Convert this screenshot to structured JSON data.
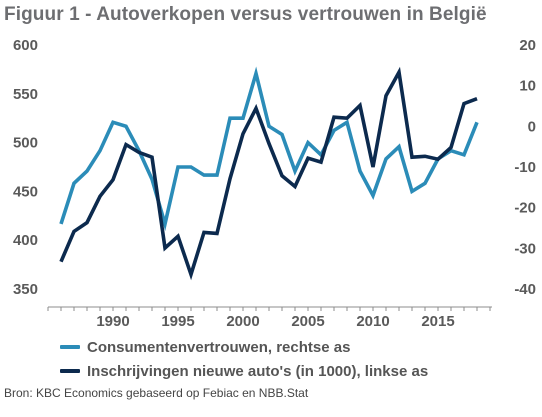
{
  "title": "Figuur 1 - Autoverkopen versus vertrouwen in België",
  "source": "Bron: KBC Economics gebaseerd op Febiac en NBB.Stat",
  "chart_data": {
    "type": "line",
    "x_ticks": [
      1990,
      1995,
      2000,
      2005,
      2010,
      2015
    ],
    "xlim": [
      1985,
      2019
    ],
    "left_axis": {
      "ylim": [
        350,
        600
      ],
      "ticks": [
        350,
        400,
        450,
        500,
        550,
        600
      ]
    },
    "right_axis": {
      "ylim": [
        -40,
        20
      ],
      "ticks": [
        -40,
        -30,
        -20,
        -10,
        0,
        10,
        20
      ]
    },
    "legend_position": "bottom",
    "grid": false,
    "series": [
      {
        "name": "Consumentenvertrouwen, rechtse as",
        "axis": "right",
        "color": "#2b8cb8",
        "x": [
          1986,
          1987,
          1988,
          1989,
          1990,
          1991,
          1992,
          1993,
          1994,
          1995,
          1996,
          1997,
          1998,
          1999,
          2000,
          2001,
          2002,
          2003,
          2004,
          2005,
          2006,
          2007,
          2008,
          2009,
          2010,
          2011,
          2012,
          2013,
          2014,
          2015,
          2016,
          2017,
          2018
        ],
        "values": [
          -24,
          -14,
          -11,
          -6,
          1,
          0,
          -6,
          -13,
          -24,
          -10,
          -10,
          -12,
          -12,
          2,
          2,
          13,
          0,
          -2,
          -11,
          -4,
          -7,
          -1,
          1,
          -11,
          -17,
          -8,
          -5,
          -16,
          -14,
          -8,
          -6,
          -7,
          1
        ]
      },
      {
        "name": "Inschrijvingen nieuwe auto's (in 1000), linkse as",
        "axis": "left",
        "color": "#0c2a4e",
        "x": [
          1986,
          1987,
          1988,
          1989,
          1990,
          1991,
          1992,
          1993,
          1994,
          1995,
          1996,
          1997,
          1998,
          1999,
          2000,
          2001,
          2002,
          2003,
          2004,
          2005,
          2006,
          2007,
          2008,
          2009,
          2010,
          2011,
          2012,
          2013,
          2014,
          2015,
          2016,
          2017,
          2018
        ],
        "values": [
          378,
          409,
          418,
          445,
          462,
          498,
          490,
          485,
          392,
          404,
          365,
          408,
          407,
          463,
          509,
          535,
          499,
          466,
          455,
          484,
          480,
          526,
          525,
          538,
          475,
          548,
          572,
          485,
          486,
          483,
          495,
          540,
          545
        ]
      }
    ]
  }
}
